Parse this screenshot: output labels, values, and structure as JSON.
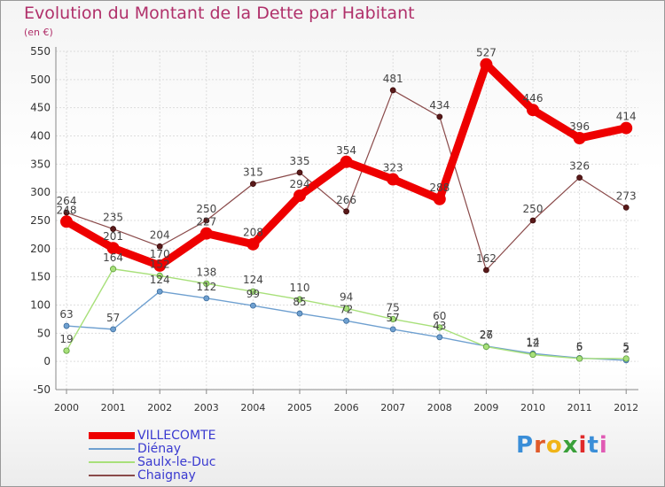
{
  "header": {
    "title": "Evolution du Montant de la Dette par Habitant",
    "subtitle": "(en €)"
  },
  "logo": {
    "text": "Proxiti",
    "colors": [
      "#3a8ed8",
      "#e05a2a",
      "#f0b418",
      "#3aa03a",
      "#e02a2a",
      "#3a8ed8",
      "#e05ab4"
    ]
  },
  "chart_data": {
    "type": "line",
    "title": "Evolution du Montant de la Dette par Habitant",
    "subtitle": "(en €)",
    "x": [
      "2000",
      "2001",
      "2002",
      "2003",
      "2004",
      "2005",
      "2006",
      "2007",
      "2008",
      "2009",
      "2010",
      "2011",
      "2012"
    ],
    "ylim": [
      -50,
      550
    ],
    "yticks": [
      -50,
      0,
      50,
      100,
      150,
      200,
      250,
      300,
      350,
      400,
      450,
      500,
      550
    ],
    "grid": true,
    "legend": "bottom-left",
    "series": [
      {
        "name": "VILLECOMTE",
        "color": "#ee0000",
        "values": [
          248,
          201,
          170,
          227,
          208,
          294,
          354,
          323,
          288,
          527,
          446,
          396,
          414
        ]
      },
      {
        "name": "Diénay",
        "color": "#6fa0d0",
        "values": [
          63,
          57,
          124,
          112,
          99,
          85,
          72,
          57,
          43,
          27,
          14,
          6,
          2
        ]
      },
      {
        "name": "Saulx-le-Duc",
        "color": "#a8e07a",
        "values": [
          19,
          164,
          152,
          138,
          124,
          110,
          94,
          75,
          60,
          26,
          12,
          5,
          5
        ]
      },
      {
        "name": "Chaignay",
        "color": "#8a4a4a",
        "values": [
          264,
          235,
          204,
          250,
          315,
          335,
          266,
          481,
          434,
          162,
          250,
          326,
          273
        ]
      }
    ]
  }
}
